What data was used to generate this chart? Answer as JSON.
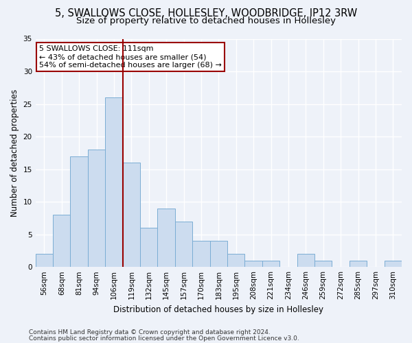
{
  "title_line1": "5, SWALLOWS CLOSE, HOLLESLEY, WOODBRIDGE, IP12 3RW",
  "title_line2": "Size of property relative to detached houses in Hollesley",
  "xlabel": "Distribution of detached houses by size in Hollesley",
  "ylabel": "Number of detached properties",
  "categories": [
    "56sqm",
    "68sqm",
    "81sqm",
    "94sqm",
    "106sqm",
    "119sqm",
    "132sqm",
    "145sqm",
    "157sqm",
    "170sqm",
    "183sqm",
    "195sqm",
    "208sqm",
    "221sqm",
    "234sqm",
    "246sqm",
    "259sqm",
    "272sqm",
    "285sqm",
    "297sqm",
    "310sqm"
  ],
  "values": [
    2,
    8,
    17,
    18,
    26,
    16,
    6,
    9,
    7,
    4,
    4,
    2,
    1,
    1,
    0,
    2,
    1,
    0,
    1,
    0,
    1
  ],
  "bar_color": "#ccdcef",
  "bar_edgecolor": "#7aadd4",
  "vline_x": 4.5,
  "vline_color": "#990000",
  "annotation_text": "5 SWALLOWS CLOSE: 111sqm\n← 43% of detached houses are smaller (54)\n54% of semi-detached houses are larger (68) →",
  "annotation_box_color": "white",
  "annotation_box_edgecolor": "#990000",
  "ylim": [
    0,
    35
  ],
  "yticks": [
    0,
    5,
    10,
    15,
    20,
    25,
    30,
    35
  ],
  "footer_line1": "Contains HM Land Registry data © Crown copyright and database right 2024.",
  "footer_line2": "Contains public sector information licensed under the Open Government Licence v3.0.",
  "background_color": "#eef2f9",
  "grid_color": "#ffffff",
  "title_fontsize": 10.5,
  "subtitle_fontsize": 9.5,
  "axis_label_fontsize": 8.5,
  "tick_fontsize": 7.5,
  "footer_fontsize": 6.5,
  "annotation_fontsize": 8
}
